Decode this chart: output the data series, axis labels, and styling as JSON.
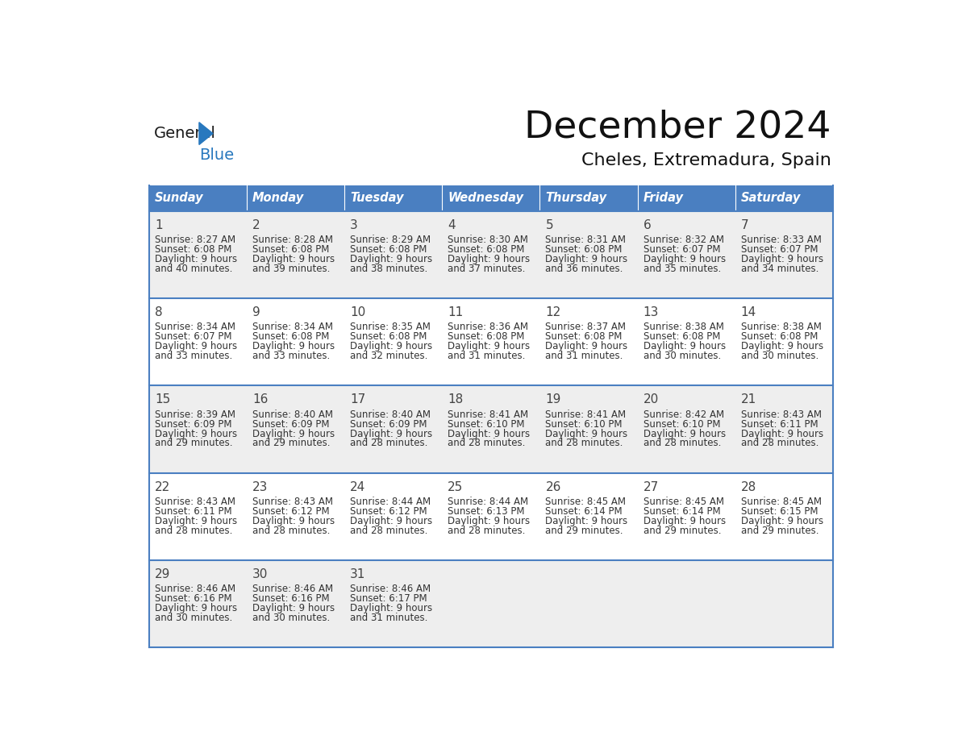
{
  "title": "December 2024",
  "subtitle": "Cheles, Extremadura, Spain",
  "days_of_week": [
    "Sunday",
    "Monday",
    "Tuesday",
    "Wednesday",
    "Thursday",
    "Friday",
    "Saturday"
  ],
  "header_bg": "#4a7fc1",
  "header_text": "#FFFFFF",
  "cell_bg_odd": "#EEEEEE",
  "cell_bg_even": "#FFFFFF",
  "border_color": "#4a7fc1",
  "day_num_color": "#444444",
  "text_color": "#333333",
  "logo_general_color": "#1a1a1a",
  "logo_blue_color": "#2878be",
  "calendar_data": [
    [
      {
        "day": 1,
        "sunrise": "8:27 AM",
        "sunset": "6:08 PM",
        "daylight_h": "9 hours",
        "daylight_m": "and 40 minutes."
      },
      {
        "day": 2,
        "sunrise": "8:28 AM",
        "sunset": "6:08 PM",
        "daylight_h": "9 hours",
        "daylight_m": "and 39 minutes."
      },
      {
        "day": 3,
        "sunrise": "8:29 AM",
        "sunset": "6:08 PM",
        "daylight_h": "9 hours",
        "daylight_m": "and 38 minutes."
      },
      {
        "day": 4,
        "sunrise": "8:30 AM",
        "sunset": "6:08 PM",
        "daylight_h": "9 hours",
        "daylight_m": "and 37 minutes."
      },
      {
        "day": 5,
        "sunrise": "8:31 AM",
        "sunset": "6:08 PM",
        "daylight_h": "9 hours",
        "daylight_m": "and 36 minutes."
      },
      {
        "day": 6,
        "sunrise": "8:32 AM",
        "sunset": "6:07 PM",
        "daylight_h": "9 hours",
        "daylight_m": "and 35 minutes."
      },
      {
        "day": 7,
        "sunrise": "8:33 AM",
        "sunset": "6:07 PM",
        "daylight_h": "9 hours",
        "daylight_m": "and 34 minutes."
      }
    ],
    [
      {
        "day": 8,
        "sunrise": "8:34 AM",
        "sunset": "6:07 PM",
        "daylight_h": "9 hours",
        "daylight_m": "and 33 minutes."
      },
      {
        "day": 9,
        "sunrise": "8:34 AM",
        "sunset": "6:08 PM",
        "daylight_h": "9 hours",
        "daylight_m": "and 33 minutes."
      },
      {
        "day": 10,
        "sunrise": "8:35 AM",
        "sunset": "6:08 PM",
        "daylight_h": "9 hours",
        "daylight_m": "and 32 minutes."
      },
      {
        "day": 11,
        "sunrise": "8:36 AM",
        "sunset": "6:08 PM",
        "daylight_h": "9 hours",
        "daylight_m": "and 31 minutes."
      },
      {
        "day": 12,
        "sunrise": "8:37 AM",
        "sunset": "6:08 PM",
        "daylight_h": "9 hours",
        "daylight_m": "and 31 minutes."
      },
      {
        "day": 13,
        "sunrise": "8:38 AM",
        "sunset": "6:08 PM",
        "daylight_h": "9 hours",
        "daylight_m": "and 30 minutes."
      },
      {
        "day": 14,
        "sunrise": "8:38 AM",
        "sunset": "6:08 PM",
        "daylight_h": "9 hours",
        "daylight_m": "and 30 minutes."
      }
    ],
    [
      {
        "day": 15,
        "sunrise": "8:39 AM",
        "sunset": "6:09 PM",
        "daylight_h": "9 hours",
        "daylight_m": "and 29 minutes."
      },
      {
        "day": 16,
        "sunrise": "8:40 AM",
        "sunset": "6:09 PM",
        "daylight_h": "9 hours",
        "daylight_m": "and 29 minutes."
      },
      {
        "day": 17,
        "sunrise": "8:40 AM",
        "sunset": "6:09 PM",
        "daylight_h": "9 hours",
        "daylight_m": "and 28 minutes."
      },
      {
        "day": 18,
        "sunrise": "8:41 AM",
        "sunset": "6:10 PM",
        "daylight_h": "9 hours",
        "daylight_m": "and 28 minutes."
      },
      {
        "day": 19,
        "sunrise": "8:41 AM",
        "sunset": "6:10 PM",
        "daylight_h": "9 hours",
        "daylight_m": "and 28 minutes."
      },
      {
        "day": 20,
        "sunrise": "8:42 AM",
        "sunset": "6:10 PM",
        "daylight_h": "9 hours",
        "daylight_m": "and 28 minutes."
      },
      {
        "day": 21,
        "sunrise": "8:43 AM",
        "sunset": "6:11 PM",
        "daylight_h": "9 hours",
        "daylight_m": "and 28 minutes."
      }
    ],
    [
      {
        "day": 22,
        "sunrise": "8:43 AM",
        "sunset": "6:11 PM",
        "daylight_h": "9 hours",
        "daylight_m": "and 28 minutes."
      },
      {
        "day": 23,
        "sunrise": "8:43 AM",
        "sunset": "6:12 PM",
        "daylight_h": "9 hours",
        "daylight_m": "and 28 minutes."
      },
      {
        "day": 24,
        "sunrise": "8:44 AM",
        "sunset": "6:12 PM",
        "daylight_h": "9 hours",
        "daylight_m": "and 28 minutes."
      },
      {
        "day": 25,
        "sunrise": "8:44 AM",
        "sunset": "6:13 PM",
        "daylight_h": "9 hours",
        "daylight_m": "and 28 minutes."
      },
      {
        "day": 26,
        "sunrise": "8:45 AM",
        "sunset": "6:14 PM",
        "daylight_h": "9 hours",
        "daylight_m": "and 29 minutes."
      },
      {
        "day": 27,
        "sunrise": "8:45 AM",
        "sunset": "6:14 PM",
        "daylight_h": "9 hours",
        "daylight_m": "and 29 minutes."
      },
      {
        "day": 28,
        "sunrise": "8:45 AM",
        "sunset": "6:15 PM",
        "daylight_h": "9 hours",
        "daylight_m": "and 29 minutes."
      }
    ],
    [
      {
        "day": 29,
        "sunrise": "8:46 AM",
        "sunset": "6:16 PM",
        "daylight_h": "9 hours",
        "daylight_m": "and 30 minutes."
      },
      {
        "day": 30,
        "sunrise": "8:46 AM",
        "sunset": "6:16 PM",
        "daylight_h": "9 hours",
        "daylight_m": "and 30 minutes."
      },
      {
        "day": 31,
        "sunrise": "8:46 AM",
        "sunset": "6:17 PM",
        "daylight_h": "9 hours",
        "daylight_m": "and 31 minutes."
      },
      null,
      null,
      null,
      null
    ]
  ]
}
